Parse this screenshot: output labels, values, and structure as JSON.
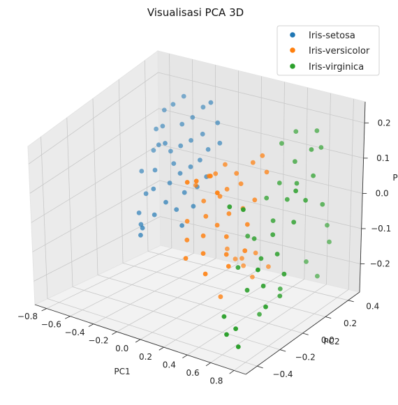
{
  "chart_data": {
    "type": "scatter",
    "projection": "3d",
    "title": "Visualisasi PCA 3D",
    "xlabel": "PC1",
    "ylabel": "PC2",
    "zlabel": "P",
    "xlim": [
      -0.9,
      0.9
    ],
    "ylim": [
      -0.5,
      0.5
    ],
    "zlim": [
      -0.28,
      0.26
    ],
    "xticks": [
      "−0.8",
      "−0.6",
      "−0.4",
      "−0.2",
      "0.0",
      "0.2",
      "0.4",
      "0.6",
      "0.8"
    ],
    "yticks": [
      "−0.4",
      "−0.2",
      "0.0",
      "0.2",
      "0.4"
    ],
    "zticks": [
      "−0.2",
      "−0.1",
      "0.0",
      "0.1",
      "0.2"
    ],
    "grid": true,
    "legend_position": "top-right",
    "series": [
      {
        "name": "Iris-setosa",
        "color": "#1f77b4",
        "points": [
          [
            -0.72,
            0.32,
            0.1
          ],
          [
            -0.7,
            0.28,
            0.05
          ],
          [
            -0.74,
            0.22,
            0.0
          ],
          [
            -0.68,
            0.35,
            0.15
          ],
          [
            -0.66,
            0.18,
            -0.05
          ],
          [
            -0.64,
            0.3,
            0.12
          ],
          [
            -0.62,
            0.25,
            0.08
          ],
          [
            -0.6,
            0.2,
            0.02
          ],
          [
            -0.58,
            0.33,
            0.18
          ],
          [
            -0.56,
            0.15,
            -0.02
          ],
          [
            -0.55,
            0.28,
            0.06
          ],
          [
            -0.53,
            0.22,
            0.1
          ],
          [
            -0.52,
            0.36,
            0.2
          ],
          [
            -0.5,
            0.1,
            -0.08
          ],
          [
            -0.48,
            0.24,
            0.04
          ],
          [
            -0.47,
            0.3,
            0.14
          ],
          [
            -0.45,
            0.18,
            0.0
          ],
          [
            -0.44,
            0.26,
            0.09
          ],
          [
            -0.42,
            0.12,
            -0.04
          ],
          [
            -0.4,
            0.32,
            0.16
          ],
          [
            -0.38,
            0.2,
            0.03
          ],
          [
            -0.36,
            0.27,
            0.11
          ],
          [
            -0.35,
            0.14,
            -0.06
          ],
          [
            -0.33,
            0.34,
            0.19
          ],
          [
            -0.31,
            0.22,
            0.05
          ],
          [
            -0.3,
            0.16,
            -0.01
          ],
          [
            -0.28,
            0.29,
            0.13
          ],
          [
            -0.26,
            0.1,
            -0.09
          ],
          [
            -0.25,
            0.24,
            0.07
          ],
          [
            -0.23,
            0.31,
            0.22
          ],
          [
            -0.21,
            0.18,
            0.01
          ],
          [
            -0.2,
            0.26,
            0.1
          ],
          [
            -0.18,
            0.12,
            -0.03
          ],
          [
            -0.16,
            0.3,
            0.17
          ],
          [
            -0.15,
            0.2,
            0.04
          ],
          [
            -0.12,
            0.28,
            0.12
          ],
          [
            -0.68,
            0.14,
            -0.1
          ],
          [
            -0.62,
            0.1,
            -0.12
          ],
          [
            -0.58,
            0.06,
            -0.14
          ],
          [
            -0.54,
            0.04,
            -0.11
          ]
        ]
      },
      {
        "name": "Iris-versicolor",
        "color": "#ff7f0e",
        "points": [
          [
            -0.08,
            0.05,
            0.06
          ],
          [
            -0.05,
            -0.05,
            -0.02
          ],
          [
            -0.02,
            0.1,
            0.08
          ],
          [
            0.0,
            -0.1,
            -0.06
          ],
          [
            0.02,
            0.02,
            0.03
          ],
          [
            0.04,
            -0.15,
            -0.1
          ],
          [
            0.06,
            0.08,
            0.1
          ],
          [
            0.08,
            -0.02,
            0.0
          ],
          [
            0.1,
            0.12,
            0.12
          ],
          [
            0.12,
            -0.08,
            -0.04
          ],
          [
            0.14,
            0.04,
            0.05
          ],
          [
            0.16,
            -0.12,
            -0.08
          ],
          [
            0.18,
            0.06,
            0.07
          ],
          [
            0.2,
            -0.04,
            -0.01
          ],
          [
            0.22,
            0.1,
            0.11
          ],
          [
            0.24,
            -0.18,
            -0.12
          ],
          [
            0.26,
            0.0,
            0.02
          ],
          [
            0.28,
            0.08,
            0.09
          ],
          [
            0.3,
            -0.06,
            -0.03
          ],
          [
            0.32,
            0.14,
            0.14
          ],
          [
            0.34,
            -0.1,
            -0.07
          ],
          [
            0.36,
            0.02,
            0.04
          ],
          [
            0.38,
            0.16,
            0.16
          ],
          [
            0.4,
            -0.14,
            -0.09
          ],
          [
            0.42,
            0.06,
            0.06
          ],
          [
            0.44,
            -0.02,
            0.01
          ],
          [
            0.46,
            0.12,
            0.13
          ],
          [
            0.48,
            -0.08,
            -0.05
          ],
          [
            0.05,
            0.18,
            -0.15
          ],
          [
            0.1,
            0.2,
            -0.18
          ],
          [
            0.15,
            0.22,
            -0.2
          ],
          [
            0.2,
            0.16,
            -0.16
          ],
          [
            0.25,
            0.2,
            -0.22
          ],
          [
            0.3,
            0.18,
            -0.14
          ],
          [
            0.35,
            0.24,
            -0.19
          ],
          [
            0.12,
            -0.2,
            0.16
          ],
          [
            0.22,
            -0.22,
            0.18
          ],
          [
            0.32,
            -0.2,
            0.2
          ],
          [
            0.42,
            -0.24,
            0.17
          ],
          [
            0.18,
            0.0,
            -0.24
          ]
        ]
      },
      {
        "name": "Iris-virginica",
        "color": "#2ca02c",
        "points": [
          [
            0.4,
            0.02,
            -0.04
          ],
          [
            0.44,
            -0.1,
            -0.1
          ],
          [
            0.48,
            0.1,
            0.06
          ],
          [
            0.52,
            -0.04,
            -0.02
          ],
          [
            0.55,
            0.14,
            0.1
          ],
          [
            0.58,
            -0.16,
            -0.14
          ],
          [
            0.6,
            0.04,
            0.02
          ],
          [
            0.62,
            -0.08,
            -0.06
          ],
          [
            0.64,
            0.18,
            0.16
          ],
          [
            0.66,
            -0.02,
            0.0
          ],
          [
            0.68,
            0.08,
            0.08
          ],
          [
            0.7,
            -0.14,
            -0.12
          ],
          [
            0.72,
            0.12,
            0.12
          ],
          [
            0.74,
            -0.06,
            -0.04
          ],
          [
            0.76,
            0.2,
            0.2
          ],
          [
            0.78,
            -0.2,
            -0.16
          ],
          [
            0.8,
            0.02,
            0.04
          ],
          [
            0.82,
            0.16,
            0.14
          ],
          [
            0.84,
            -0.1,
            -0.08
          ],
          [
            0.86,
            0.06,
            0.1
          ],
          [
            0.5,
            -0.28,
            -0.2
          ],
          [
            0.56,
            -0.32,
            -0.24
          ],
          [
            0.62,
            -0.3,
            -0.22
          ],
          [
            0.68,
            -0.34,
            -0.26
          ],
          [
            0.46,
            0.24,
            0.18
          ],
          [
            0.54,
            0.28,
            0.21
          ],
          [
            0.7,
            0.3,
            0.22
          ],
          [
            0.78,
            0.26,
            0.19
          ],
          [
            0.58,
            0.34,
            -0.18
          ],
          [
            0.66,
            0.36,
            -0.22
          ],
          [
            0.74,
            0.38,
            -0.12
          ],
          [
            0.48,
            -0.2,
            0.12
          ],
          [
            0.64,
            -0.24,
            0.14
          ],
          [
            0.8,
            -0.28,
            -0.02
          ],
          [
            0.52,
            0.0,
            -0.26
          ],
          [
            0.6,
            0.1,
            -0.2
          ],
          [
            0.72,
            -0.02,
            -0.18
          ],
          [
            0.84,
            0.22,
            0.04
          ],
          [
            0.88,
            -0.04,
            0.16
          ],
          [
            0.76,
            0.34,
            -0.06
          ]
        ]
      }
    ]
  }
}
